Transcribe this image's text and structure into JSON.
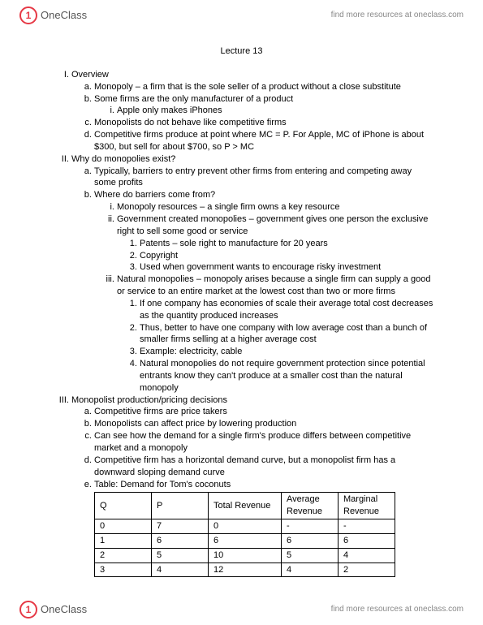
{
  "brand": {
    "icon_letter": "1",
    "name": "OneClass",
    "tagline": "find more resources at oneclass.com"
  },
  "title": "Lecture 13",
  "sections": [
    {
      "label": "Overview",
      "items": [
        {
          "text": "Monopoly – a firm that is the sole seller of a product without a close substitute"
        },
        {
          "text": "Some firms are the only manufacturer of a product",
          "sub": [
            {
              "text": "Apple only makes iPhones"
            }
          ]
        },
        {
          "text": "Monopolists do not behave like competitive firms"
        },
        {
          "text": "Competitive firms produce at point where MC = P. For Apple, MC of iPhone is about $300, but sell for about $700, so P > MC"
        }
      ]
    },
    {
      "label": "Why do monopolies exist?",
      "items": [
        {
          "text": "Typically, barriers to entry prevent other firms from entering and competing away some profits"
        },
        {
          "text": "Where do barriers come from?",
          "sub": [
            {
              "text": "Monopoly resources – a single firm owns a key resource"
            },
            {
              "text": "Government created monopolies – government gives one person the exclusive right to sell some good or service",
              "subnum": [
                {
                  "text": "Patents – sole right to manufacture for 20 years"
                },
                {
                  "text": "Copyright"
                },
                {
                  "text": "Used when government wants to encourage risky investment"
                }
              ]
            },
            {
              "text": "Natural monopolies – monopoly arises because a single firm can supply a good or service to an entire market at the lowest cost than two or more firms",
              "subnum": [
                {
                  "text": "If one company has economies of scale their average total cost decreases as the quantity produced increases"
                },
                {
                  "text": "Thus, better to have one company with low average cost than a bunch of smaller firms selling at a higher average cost"
                },
                {
                  "text": "Example: electricity, cable"
                },
                {
                  "text": "Natural monopolies do not require government protection since potential entrants know they can't produce at a smaller cost than the natural monopoly"
                }
              ]
            }
          ]
        }
      ]
    },
    {
      "label": "Monopolist production/pricing decisions",
      "items": [
        {
          "text": "Competitive firms are price takers"
        },
        {
          "text": "Monopolists can affect price by lowering production"
        },
        {
          "text": "Can see how the demand for a single firm's produce differs between competitive market and a monopoly"
        },
        {
          "text": "Competitive firm has a horizontal demand curve, but a monopolist firm has a downward sloping demand curve"
        },
        {
          "text": "Table: Demand for Tom's coconuts",
          "has_table": true
        }
      ]
    }
  ],
  "table": {
    "columns": [
      "Q",
      "P",
      "Total Revenue",
      "Average Revenue",
      "Marginal Revenue"
    ],
    "rows": [
      [
        "0",
        "7",
        "0",
        "-",
        "-"
      ],
      [
        "1",
        "6",
        "6",
        "6",
        "6"
      ],
      [
        "2",
        "5",
        "10",
        "5",
        "4"
      ],
      [
        "3",
        "4",
        "12",
        "4",
        "2"
      ]
    ]
  }
}
